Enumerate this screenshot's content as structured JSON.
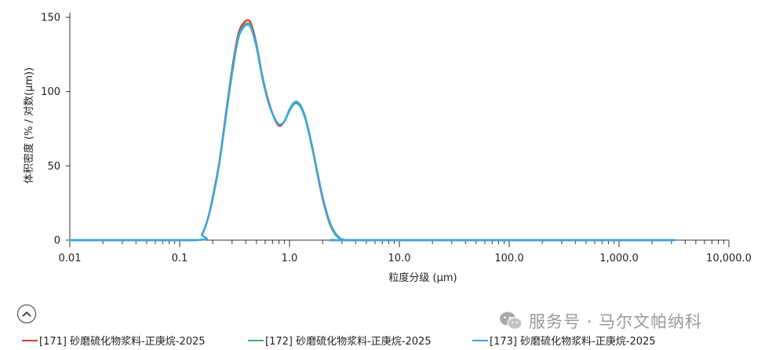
{
  "chart_data": {
    "type": "line",
    "xscale": "log",
    "xlim": [
      0.01,
      10000
    ],
    "ylim": [
      0,
      150
    ],
    "xlabel": "粒度分级 (µm)",
    "ylabel": "体积密度 (% / 对数(µm))",
    "x_ticks": [
      0.01,
      0.1,
      1.0,
      10.0,
      100.0,
      1000.0,
      10000.0
    ],
    "x_tick_labels": [
      "0.01",
      "0.1",
      "1.0",
      "10.0",
      "100.0",
      "1,000.0",
      "10,000.0"
    ],
    "y_ticks": [
      0,
      50,
      100,
      150
    ],
    "y_tick_labels": [
      "0",
      "50",
      "100",
      "150"
    ],
    "grid": false,
    "legend_position": "bottom",
    "series": [
      {
        "name": "[171] 砂磨硫化物浆料-正庚烷-2025",
        "color": "#e03a3a",
        "x": [
          0.01,
          0.14,
          0.16,
          0.18,
          0.2,
          0.23,
          0.26,
          0.3,
          0.34,
          0.38,
          0.42,
          0.45,
          0.5,
          0.56,
          0.63,
          0.71,
          0.8,
          0.9,
          1.0,
          1.12,
          1.25,
          1.4,
          1.6,
          1.8,
          2.0,
          2.3,
          2.6,
          3.0,
          3.4,
          4.0,
          3200
        ],
        "y": [
          0,
          0,
          4,
          14,
          29,
          53,
          82,
          115,
          138,
          146,
          148,
          145,
          132,
          112,
          96,
          84,
          77,
          80,
          88,
          93,
          91,
          82,
          63,
          44,
          28,
          12,
          4,
          0.5,
          0,
          0,
          0
        ]
      },
      {
        "name": "[172] 砂磨硫化物浆料-正庚烷-2025",
        "color": "#3cb371",
        "x": [
          0.01,
          0.14,
          0.16,
          0.18,
          0.2,
          0.23,
          0.26,
          0.3,
          0.34,
          0.38,
          0.42,
          0.45,
          0.5,
          0.56,
          0.63,
          0.71,
          0.8,
          0.9,
          1.0,
          1.12,
          1.25,
          1.4,
          1.6,
          1.8,
          2.0,
          2.3,
          2.6,
          3.0,
          3.4,
          4.0,
          3200
        ],
        "y": [
          0,
          0,
          4,
          14,
          28,
          52,
          81,
          113,
          136,
          144,
          146,
          143,
          131,
          111,
          95,
          84,
          78,
          80,
          87,
          92,
          90,
          81,
          63,
          45,
          29,
          13,
          4,
          0.5,
          0,
          0,
          0
        ]
      },
      {
        "name": "[173] 砂磨硫化物浆料-正庚烷-2025",
        "color": "#3aa7e0",
        "x": [
          0.01,
          0.14,
          0.16,
          0.18,
          0.2,
          0.23,
          0.26,
          0.3,
          0.34,
          0.38,
          0.42,
          0.45,
          0.5,
          0.56,
          0.63,
          0.71,
          0.8,
          0.9,
          1.0,
          1.12,
          1.25,
          1.4,
          1.6,
          1.8,
          2.0,
          2.3,
          2.6,
          3.0,
          3.4,
          4.0,
          3200
        ],
        "y": [
          0,
          0,
          4,
          14,
          28,
          52,
          80,
          112,
          135,
          143,
          145,
          142,
          130,
          111,
          95,
          84,
          78,
          80,
          88,
          93,
          91,
          82,
          64,
          45,
          29,
          13,
          5,
          0.6,
          0,
          0,
          0
        ]
      }
    ]
  },
  "legend_toggle_icon": "chevron-up-icon",
  "watermark": {
    "icon": "wechat-icon",
    "text": "服务号 · 马尔文帕纳科",
    "color": "#9a9a9a"
  }
}
